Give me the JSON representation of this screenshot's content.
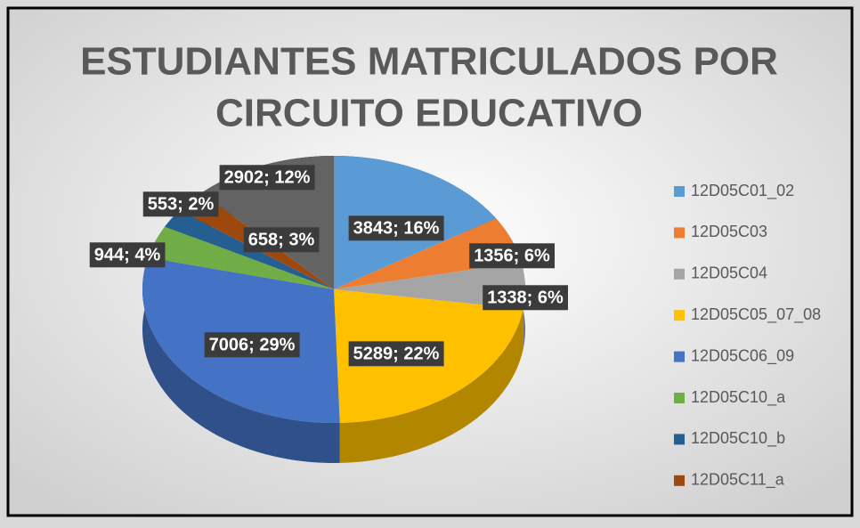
{
  "chart_data": {
    "type": "pie",
    "title": "ESTUDIANTES MATRICULADOS POR",
    "subtitle": "CIRCUITO EDUCATIVO",
    "categories": [
      "12D05C01_02",
      "12D05C03",
      "12D05C04",
      "12D05C05_07_08",
      "12D05C06_09",
      "12D05C10_a",
      "12D05C10_b",
      "12D05C11_a",
      null
    ],
    "values": [
      3843,
      1356,
      1338,
      5289,
      7006,
      944,
      553,
      658,
      2902
    ],
    "value_labels": [
      "3843; 16%",
      "1356; 6%",
      "1338; 6%",
      "5289; 22%",
      "7006; 29%",
      "944; 4%",
      "553; 2%",
      "658; 3%",
      "2902; 12%"
    ],
    "colors": [
      "#5b9bd5",
      "#ed7d31",
      "#a5a5a5",
      "#ffc000",
      "#4472c4",
      "#70ad47",
      "#255e91",
      "#9e480e",
      "#636363"
    ],
    "legend": "right"
  }
}
